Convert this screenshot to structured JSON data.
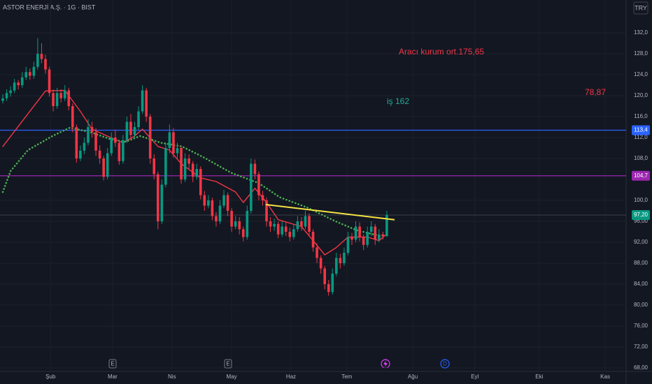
{
  "header": {
    "symbol": "ASTOR ENERJİ A.Ş. · 1G · BIST",
    "currency": "TRY"
  },
  "chart_data": {
    "type": "candlestick",
    "xlim": [
      -0.72,
      160.7
    ],
    "ylim": [
      67.33,
      138.27
    ],
    "xticks": [
      {
        "value": 12.3,
        "label": "Şub"
      },
      {
        "value": 28.3,
        "label": "Mar"
      },
      {
        "value": 43.6,
        "label": "Nis"
      },
      {
        "value": 59.0,
        "label": "May"
      },
      {
        "value": 74.3,
        "label": "Haz"
      },
      {
        "value": 88.7,
        "label": "Tem"
      },
      {
        "value": 105.7,
        "label": "Ağu"
      },
      {
        "value": 121.7,
        "label": "Eyl"
      },
      {
        "value": 138.3,
        "label": "Eki"
      },
      {
        "value": 155.3,
        "label": "Kas"
      }
    ],
    "yticks": [
      {
        "value": 68,
        "label": "68,00"
      },
      {
        "value": 72,
        "label": "72,00"
      },
      {
        "value": 76,
        "label": "76,00"
      },
      {
        "value": 80,
        "label": "80,00"
      },
      {
        "value": 84,
        "label": "84,00"
      },
      {
        "value": 88,
        "label": "88,00"
      },
      {
        "value": 92,
        "label": "92,00"
      },
      {
        "value": 96,
        "label": "96,00"
      },
      {
        "value": 100,
        "label": "100,0"
      },
      {
        "value": 108,
        "label": "108,0"
      },
      {
        "value": 112,
        "label": "112,0"
      },
      {
        "value": 116,
        "label": "116,0"
      },
      {
        "value": 120,
        "label": "120,0"
      },
      {
        "value": 124,
        "label": "124,0"
      },
      {
        "value": 128,
        "label": "128,0"
      },
      {
        "value": 132,
        "label": "132,0"
      }
    ],
    "grid": true,
    "candles": {
      "up_color": "#089981",
      "down_color": "#f23645",
      "open": [
        119,
        119.5,
        120.5,
        121,
        122.5,
        122,
        123.5,
        124.5,
        123.8,
        125.5,
        128,
        127,
        125,
        120.5,
        118,
        120.5,
        119.5,
        121,
        118,
        114,
        108,
        109.5,
        111,
        114,
        113,
        109.5,
        108,
        104.5,
        109,
        112,
        111,
        107.5,
        111.5,
        115,
        112.5,
        114,
        117,
        121,
        116,
        108,
        105,
        96,
        103,
        110,
        113,
        109,
        110,
        104,
        108,
        107,
        104.5,
        106,
        101,
        99,
        100,
        97,
        96,
        99,
        101,
        98,
        95,
        96,
        94.5,
        93,
        98,
        107,
        105,
        101,
        100,
        96,
        95,
        95.5,
        93.5,
        95,
        94,
        93,
        94.5,
        96,
        95,
        97,
        94,
        91,
        89,
        87,
        84,
        82.5,
        86,
        89,
        88,
        90,
        93,
        92.5,
        95,
        93,
        91.5,
        94,
        95,
        92.5,
        93.5,
        93.2
      ],
      "high": [
        120.3,
        121.2,
        121.8,
        123.2,
        123,
        124.5,
        125.5,
        125.2,
        126.5,
        131,
        130,
        127.8,
        125.5,
        121.2,
        121.5,
        121.2,
        122,
        121.5,
        118.5,
        114.5,
        110.5,
        112,
        115.5,
        115,
        113.8,
        110.5,
        108.5,
        110,
        113,
        113.5,
        111.5,
        112.5,
        116,
        116.5,
        115,
        118,
        122,
        121.5,
        116.5,
        108.8,
        105.5,
        104,
        111,
        114.5,
        113.8,
        111,
        110.5,
        109,
        108.8,
        107.5,
        107,
        106.5,
        101.8,
        101,
        100.5,
        97.8,
        100,
        102,
        101.5,
        98.5,
        97,
        96.8,
        95,
        99,
        108,
        107.8,
        105.5,
        101.8,
        100.5,
        96.8,
        96.5,
        96,
        96,
        95.8,
        94.8,
        95.5,
        97,
        96.8,
        98,
        97.5,
        94.5,
        91.8,
        89.5,
        87.5,
        84.8,
        87,
        90,
        89.8,
        91,
        94,
        93.8,
        96,
        95.8,
        93.5,
        95,
        96,
        95.5,
        94.5,
        94,
        98
      ],
      "low": [
        118.5,
        119,
        119.8,
        120.5,
        121.2,
        121.5,
        123,
        123,
        123.2,
        125,
        126.2,
        124.2,
        119.8,
        117,
        117.5,
        118.7,
        119,
        117.2,
        113,
        107.2,
        107.5,
        108.8,
        110.5,
        112,
        108.5,
        107,
        103.8,
        104,
        108.5,
        110.2,
        106.8,
        107,
        111,
        111.5,
        111.8,
        113.5,
        116.5,
        115,
        107,
        104,
        94.5,
        95.5,
        102.5,
        109,
        108.2,
        108,
        103.2,
        103.5,
        105.8,
        103.5,
        104,
        100.2,
        98,
        98.5,
        96.2,
        95,
        95.5,
        98.5,
        97,
        94,
        94.5,
        93.5,
        92.2,
        92.5,
        97.5,
        104,
        100,
        99,
        95,
        94,
        94.2,
        92.8,
        93,
        93.2,
        92.2,
        92.5,
        94,
        94.2,
        94.5,
        93.2,
        90.2,
        88,
        86,
        83,
        81.8,
        82,
        85.5,
        87,
        87.5,
        89.5,
        91.5,
        92,
        92.2,
        90.5,
        91,
        93.2,
        91.5,
        92,
        92.5,
        93
      ],
      "close": [
        119.5,
        120.5,
        121,
        122.5,
        122,
        123.5,
        124.5,
        123.8,
        125.5,
        128,
        127,
        125,
        120.5,
        118,
        120.5,
        119.5,
        121,
        118,
        114,
        108,
        109.5,
        111,
        114,
        113,
        109.5,
        108,
        104.5,
        109,
        112,
        111,
        107.5,
        111.5,
        115,
        112.5,
        114,
        117,
        121,
        116,
        108,
        105,
        96,
        103,
        110,
        113,
        109,
        110,
        104,
        108,
        107,
        104.5,
        106,
        101,
        99,
        100,
        97,
        96,
        99,
        101,
        98,
        95,
        96,
        94.5,
        93,
        98,
        107,
        105,
        101,
        100,
        96,
        95,
        95.5,
        93.5,
        95,
        94,
        93,
        94.5,
        96,
        95,
        97,
        94,
        91,
        89,
        87,
        84,
        82.5,
        86,
        89,
        88,
        90,
        93,
        92.5,
        95,
        93,
        91.5,
        94,
        95,
        92.5,
        93.5,
        93.2,
        97.2
      ]
    },
    "moving_averages": [
      {
        "color": "#f23645",
        "style": "solid",
        "x": [
          0,
          11,
          16,
          20,
          23,
          29,
          31,
          34,
          36,
          40,
          43,
          46,
          51,
          55,
          60,
          62,
          65,
          68,
          71,
          77,
          80,
          83,
          86,
          89,
          94,
          97,
          99
        ],
        "values": [
          110.3,
          120.9,
          121,
          117,
          113.6,
          111.6,
          111,
          112.3,
          113.6,
          110.3,
          109.6,
          107,
          104.3,
          103.6,
          101.6,
          99.6,
          102.3,
          99.6,
          96.3,
          95,
          92.3,
          89.6,
          91,
          93,
          93,
          92.3,
          93.6
        ]
      },
      {
        "color": "#4caf50",
        "style": "dotted",
        "x": [
          0,
          2,
          6.5,
          12.8,
          17.3,
          22.7,
          28.1,
          31.7,
          35.4,
          40.8,
          46.2,
          51.6,
          58.8,
          66,
          71.4,
          78.6,
          85.8,
          91.2,
          96.7,
          98.5
        ],
        "values": [
          101.6,
          105.6,
          109.6,
          112.3,
          113.9,
          113,
          111.6,
          111.2,
          112.3,
          111,
          110.3,
          108.3,
          105.3,
          103.3,
          100.6,
          98.6,
          96,
          94.3,
          93.3,
          93.3
        ]
      }
    ],
    "levels": [
      {
        "value": 113.4,
        "label": "113,4",
        "color": "#2962ff"
      },
      {
        "value": 104.7,
        "label": "104,7",
        "color": "#9c27b0"
      }
    ],
    "last_price": {
      "value": 97.2,
      "label": "97,20",
      "color": "#089981"
    },
    "trendline": {
      "x": [
        67.8,
        101
      ],
      "values": [
        99.2,
        96.3
      ],
      "color": "#f5e342"
    },
    "annotations": [
      {
        "text": "Aracı kurum ort.175,65",
        "color": "#f23645"
      },
      {
        "text": "iş 162",
        "color": "#22ab94"
      },
      {
        "text": "78,87",
        "color": "#f23645"
      }
    ],
    "events": [
      "E",
      "E",
      "D"
    ]
  }
}
